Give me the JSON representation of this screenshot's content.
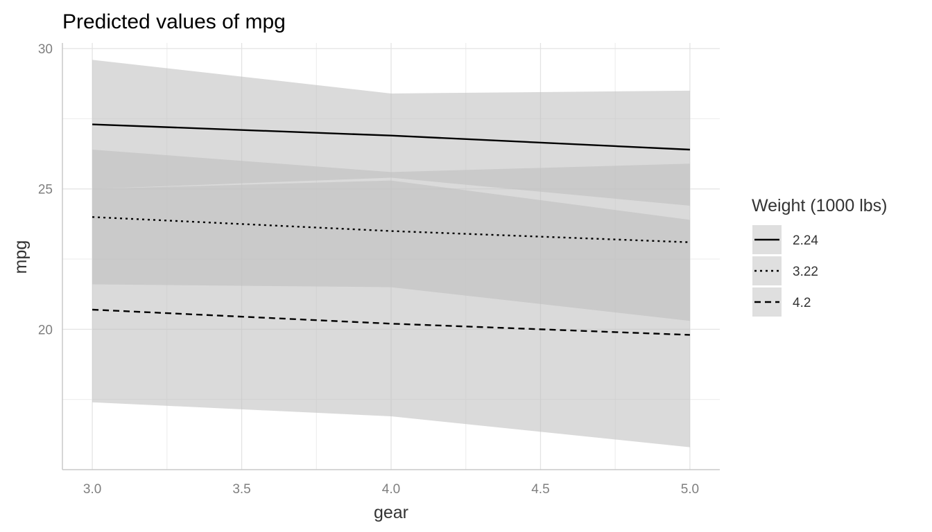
{
  "chart_data": {
    "type": "line",
    "title": "Predicted values of mpg",
    "xlabel": "gear",
    "ylabel": "mpg",
    "xlim": [
      2.9,
      5.1
    ],
    "ylim": [
      15,
      30.2
    ],
    "x_ticks": [
      3.0,
      3.5,
      4.0,
      4.5,
      5.0
    ],
    "x_tick_labels": [
      "3.0",
      "3.5",
      "4.0",
      "4.5",
      "5.0"
    ],
    "y_ticks": [
      20,
      25,
      30
    ],
    "y_tick_labels": [
      "20",
      "25",
      "30"
    ],
    "grid": true,
    "legend": {
      "title": "Weight (1000 lbs)",
      "position": "right"
    },
    "x": [
      3.0,
      4.0,
      5.0
    ],
    "series": [
      {
        "name": "2.24",
        "linetype": "solid",
        "values": [
          27.3,
          26.9,
          26.4
        ],
        "lower": [
          25.0,
          25.4,
          24.4
        ],
        "upper": [
          29.6,
          28.4,
          28.5
        ]
      },
      {
        "name": "3.22",
        "linetype": "dotted",
        "values": [
          24.0,
          23.5,
          23.1
        ],
        "lower": [
          21.6,
          21.5,
          20.3
        ],
        "upper": [
          26.4,
          25.6,
          25.9
        ]
      },
      {
        "name": "4.2",
        "linetype": "dashed",
        "values": [
          20.7,
          20.2,
          19.8
        ],
        "lower": [
          17.4,
          16.9,
          15.8
        ],
        "upper": [
          25.0,
          25.3,
          23.9
        ]
      }
    ],
    "band_color": "#bfbfbf",
    "line_color": "#000000",
    "grid_color": "#ebebeb"
  }
}
